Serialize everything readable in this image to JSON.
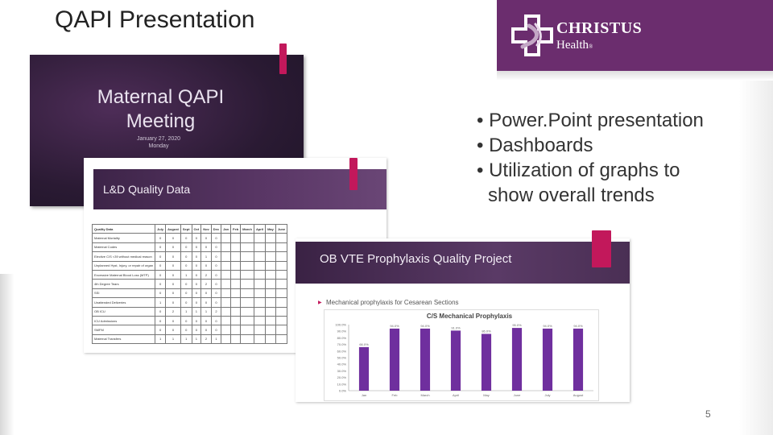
{
  "slide": {
    "title": "QAPI Presentation",
    "page_number": "5",
    "bullets": [
      {
        "text": "• Power.Point presentation"
      },
      {
        "text": "• Dashboards"
      },
      {
        "text": "• Utilization of graphs to",
        "continuation": "show overall trends"
      }
    ]
  },
  "logo": {
    "line1": "CHRISTUS",
    "line2": "Health",
    "trademark": "®",
    "colors": {
      "background": "#6b2d6e",
      "cross_outline": "#ffffff",
      "cross_inner": "#c3a7c5"
    }
  },
  "thumbnails": {
    "maternal": {
      "title_line1": "Maternal QAPI",
      "title_line2": "Meeting",
      "date": "January 27, 2020",
      "day": "Monday"
    },
    "ld_quality": {
      "title": "L&D Quality Data",
      "table": {
        "headers": [
          "Quality Data",
          "July",
          "August",
          "Sept",
          "Oct",
          "Nov",
          "Dec",
          "Jan",
          "Feb",
          "March",
          "April",
          "May",
          "June"
        ],
        "rows": [
          {
            "label": "Maternal Mortality",
            "values": [
              "0",
              "0",
              "0",
              "0",
              "0",
              "0"
            ]
          },
          {
            "label": "Maternal Codes",
            "values": [
              "0",
              "0",
              "0",
              "0",
              "0",
              "0"
            ]
          },
          {
            "label": "Elective C/S <39 without medical reason",
            "values": [
              "0",
              "0",
              "0",
              "0",
              "1",
              "0"
            ]
          },
          {
            "label": "Unplanned Hyst, Injury, or repair of organ",
            "values": [
              "0",
              "0",
              "0",
              "0",
              "0",
              "0"
            ]
          },
          {
            "label": "Excessive Maternal Blood Loss (MTP)",
            "values": [
              "0",
              "0",
              "1",
              "0",
              "2",
              "0"
            ]
          },
          {
            "label": "4th Degree Tears",
            "values": [
              "0",
              "0",
              "0",
              "0",
              "2",
              "0"
            ]
          },
          {
            "label": "SSI",
            "values": [
              "0",
              "0",
              "0",
              "0",
              "0",
              "0"
            ]
          },
          {
            "label": "Unattended Deliveries",
            "values": [
              "1",
              "0",
              "0",
              "0",
              "0",
              "0"
            ]
          },
          {
            "label": "OB ICU",
            "values": [
              "0",
              "2",
              "1",
              "1",
              "1",
              "2"
            ]
          },
          {
            "label": "ICU Admissions",
            "values": [
              "0",
              "0",
              "0",
              "0",
              "0",
              "0"
            ]
          },
          {
            "label": "SMFM",
            "values": [
              "0",
              "0",
              "0",
              "0",
              "0",
              "0"
            ]
          },
          {
            "label": "Maternal Transfers",
            "values": [
              "1",
              "1",
              "1",
              "1",
              "2",
              "1"
            ]
          }
        ]
      }
    },
    "vte": {
      "title": "OB VTE Prophylaxis Quality Project",
      "bullet": "Mechanical prophylaxis for Cesarean Sections"
    }
  },
  "chart_data": {
    "type": "bar",
    "title": "C/S Mechanical Prophylaxis",
    "categories": [
      "Jan",
      "Feb",
      "March",
      "April",
      "May",
      "June",
      "July",
      "August"
    ],
    "values": [
      66.0,
      94.0,
      94.0,
      91.0,
      86.0,
      95.0,
      94.0,
      94.0
    ],
    "value_labels": [
      "66.0%",
      "94.0%",
      "94.0%",
      "91.0%",
      "86.0%",
      "95.0%",
      "94.0%",
      "94.0%"
    ],
    "ylim": [
      0,
      100
    ],
    "yticks": [
      "0.0%",
      "10.0%",
      "20.0%",
      "30.0%",
      "40.0%",
      "50.0%",
      "60.0%",
      "70.0%",
      "80.0%",
      "90.0%",
      "100.0%"
    ],
    "grid": false,
    "legend": "none",
    "colors": {
      "bar": "#6f2f9e"
    }
  }
}
